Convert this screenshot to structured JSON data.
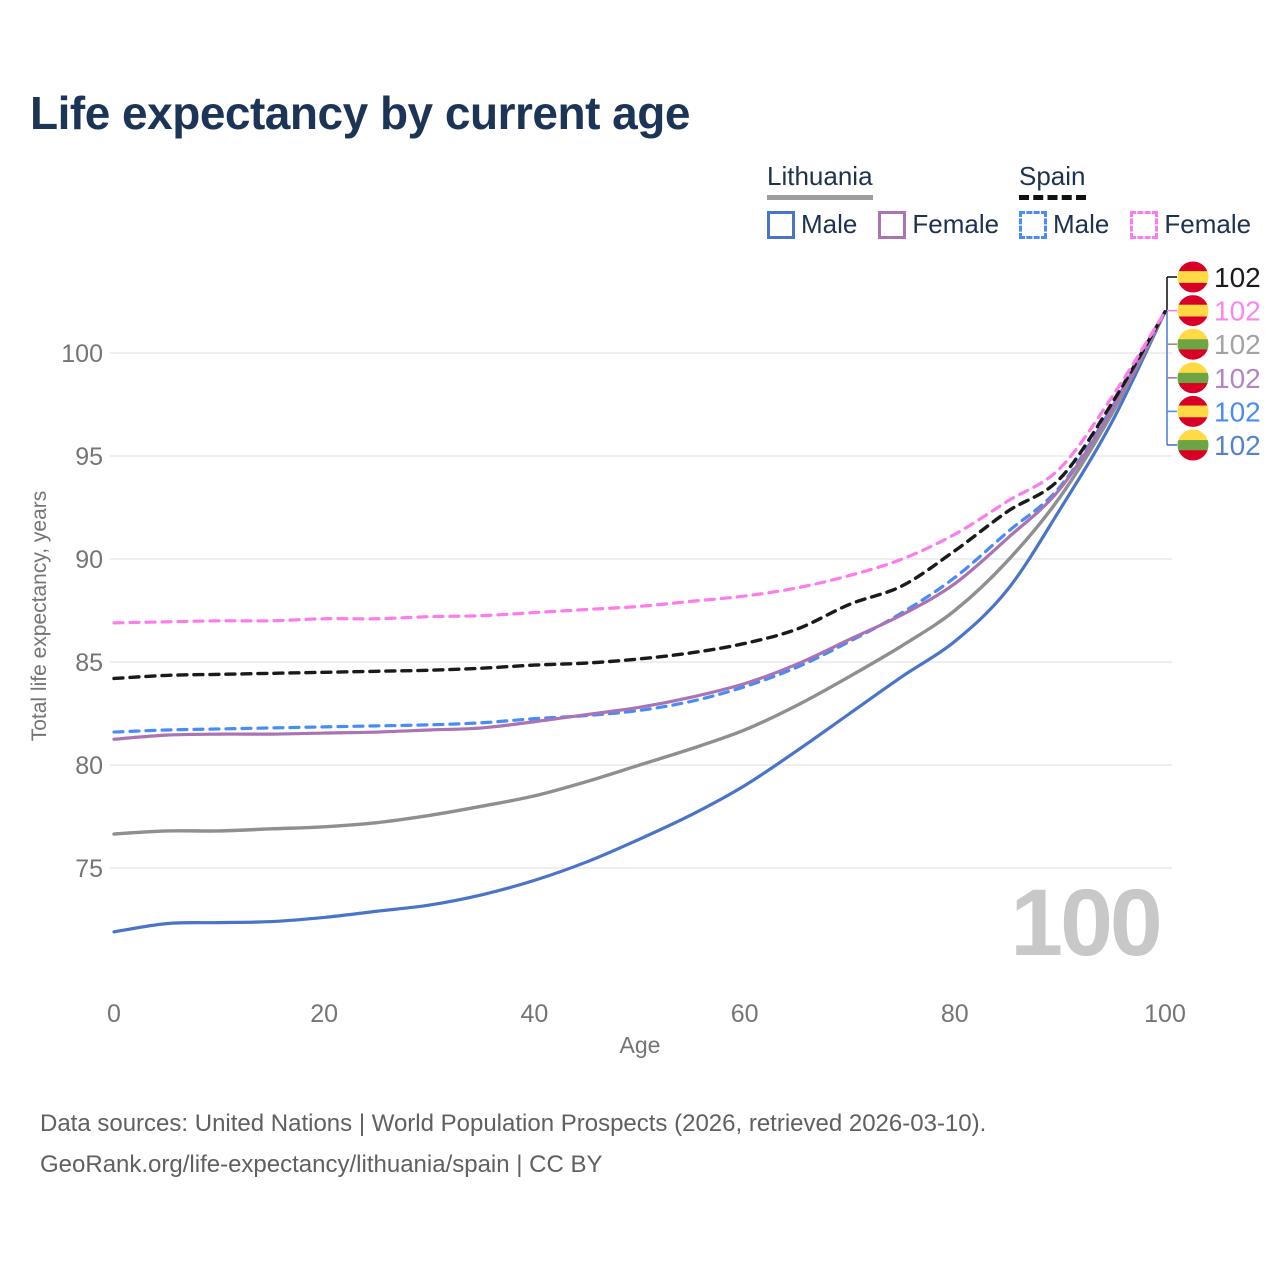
{
  "title": "Life expectancy by current age",
  "watermark": "100",
  "legend": {
    "groups": [
      {
        "name": "Lithuania",
        "style": "solid",
        "items": [
          {
            "label": "Male",
            "color": "#4a74c8"
          },
          {
            "label": "Female",
            "color": "#a973b4"
          }
        ]
      },
      {
        "name": "Spain",
        "style": "dashed",
        "items": [
          {
            "label": "Male",
            "color": "#4a8cf6"
          },
          {
            "label": "Female",
            "color": "#fb7deb"
          }
        ]
      }
    ]
  },
  "footer": {
    "line1": "Data sources: United Nations | World Population Prospects (2026, retrieved 2026-03-10).",
    "line2": "GeoRank.org/life-expectancy/lithuania/spain | CC BY"
  },
  "chart_data": {
    "type": "line",
    "title": "Life expectancy by current age",
    "xlabel": "Age",
    "ylabel": "Total life expectancy, years",
    "xlim": [
      0,
      100
    ],
    "ylim": [
      75,
      100
    ],
    "x_ticks": [
      0,
      20,
      40,
      60,
      80,
      100
    ],
    "y_ticks": [
      75,
      80,
      85,
      90,
      95,
      100
    ],
    "grid": true,
    "legend_position": "top-right",
    "x": [
      0,
      5,
      10,
      15,
      20,
      25,
      30,
      35,
      40,
      45,
      50,
      55,
      60,
      65,
      70,
      75,
      80,
      85,
      90,
      95,
      100
    ],
    "flags": {
      "spain": [
        "#d80027",
        "#ffda44",
        "#d80027"
      ],
      "lithuania": [
        "#ffda44",
        "#6da544",
        "#d80027"
      ]
    },
    "series": [
      {
        "name": "Spain",
        "country": "spain",
        "sex": "total",
        "dashed": true,
        "color": "#1a1a1a",
        "label_color": "#1a1a1a",
        "end_label": "102",
        "values": [
          84.2,
          84.35,
          84.4,
          84.45,
          84.5,
          84.55,
          84.6,
          84.7,
          84.85,
          84.95,
          85.15,
          85.45,
          85.9,
          86.6,
          87.8,
          88.7,
          90.4,
          92.3,
          93.9,
          97.6,
          102
        ]
      },
      {
        "name": "Spain Female",
        "country": "spain",
        "sex": "female",
        "dashed": true,
        "color": "#fb7deb",
        "label_color": "#fb86ee",
        "end_label": "102",
        "values": [
          86.9,
          86.95,
          87.0,
          87.0,
          87.1,
          87.1,
          87.2,
          87.25,
          87.4,
          87.55,
          87.7,
          87.95,
          88.2,
          88.6,
          89.2,
          90.0,
          91.2,
          92.8,
          94.4,
          97.9,
          102
        ]
      },
      {
        "name": "Lithuania",
        "country": "lithuania",
        "sex": "total",
        "dashed": false,
        "color": "#8f8f8f",
        "label_color": "#a3a3a3",
        "end_label": "102",
        "values": [
          76.65,
          76.8,
          76.8,
          76.9,
          77.0,
          77.2,
          77.55,
          78.0,
          78.5,
          79.2,
          80.0,
          80.8,
          81.7,
          82.9,
          84.3,
          85.8,
          87.5,
          89.9,
          93.0,
          97.1,
          102
        ]
      },
      {
        "name": "Lithuania Female",
        "country": "lithuania",
        "sex": "female",
        "dashed": false,
        "color": "#a973b4",
        "label_color": "#b484c6",
        "end_label": "102",
        "values": [
          81.25,
          81.45,
          81.5,
          81.5,
          81.55,
          81.6,
          81.7,
          81.8,
          82.1,
          82.45,
          82.8,
          83.3,
          83.95,
          84.9,
          86.1,
          87.3,
          88.8,
          91.0,
          93.4,
          97.3,
          102
        ]
      },
      {
        "name": "Spain Male",
        "country": "spain",
        "sex": "male",
        "dashed": true,
        "color": "#4a8cf6",
        "label_color": "#4a8cf6",
        "end_label": "102",
        "values": [
          81.6,
          81.7,
          81.75,
          81.8,
          81.85,
          81.9,
          81.95,
          82.05,
          82.25,
          82.4,
          82.65,
          83.1,
          83.8,
          84.75,
          86.0,
          87.4,
          89.1,
          91.3,
          93.5,
          97.4,
          102
        ]
      },
      {
        "name": "Lithuania Male",
        "country": "lithuania",
        "sex": "male",
        "dashed": false,
        "color": "#4a74c8",
        "label_color": "#5581d2",
        "end_label": "102",
        "values": [
          71.9,
          72.3,
          72.35,
          72.4,
          72.6,
          72.9,
          73.2,
          73.7,
          74.4,
          75.3,
          76.4,
          77.6,
          79.0,
          80.7,
          82.5,
          84.3,
          86.0,
          88.5,
          92.4,
          96.7,
          102
        ]
      }
    ]
  }
}
